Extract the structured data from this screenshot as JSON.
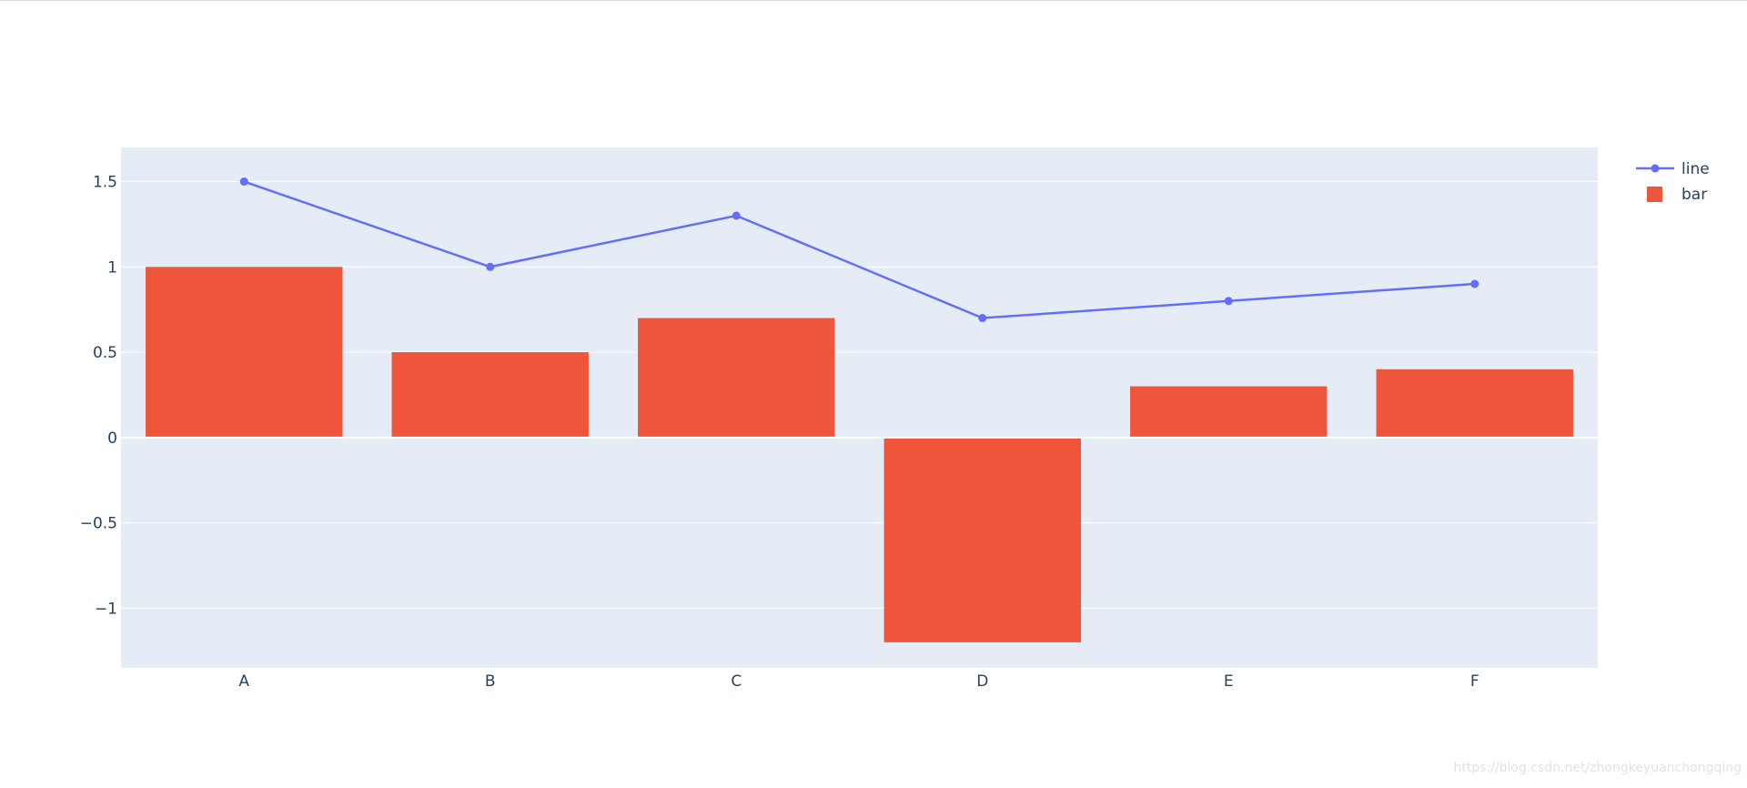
{
  "chart_data": {
    "type": "bar",
    "categories": [
      "A",
      "B",
      "C",
      "D",
      "E",
      "F"
    ],
    "series": [
      {
        "name": "line",
        "type": "line",
        "color": "#636efa",
        "values": [
          1.5,
          1.0,
          1.3,
          0.7,
          0.8,
          0.9
        ]
      },
      {
        "name": "bar",
        "type": "bar",
        "color": "#ef553b",
        "values": [
          1.0,
          0.5,
          0.7,
          -1.2,
          0.3,
          0.4
        ]
      }
    ],
    "yticks": [
      -1,
      -0.5,
      0,
      0.5,
      1,
      1.5
    ],
    "ytick_labels": [
      "−1",
      "−0.5",
      "0",
      "0.5",
      "1",
      "1.5"
    ],
    "ylim": [
      -1.35,
      1.7
    ],
    "grid": true,
    "legend_position": "top-right",
    "plot_background": "#e5ecf6"
  },
  "watermark": "https://blog.csdn.net/zhongkeyuanchongqing"
}
